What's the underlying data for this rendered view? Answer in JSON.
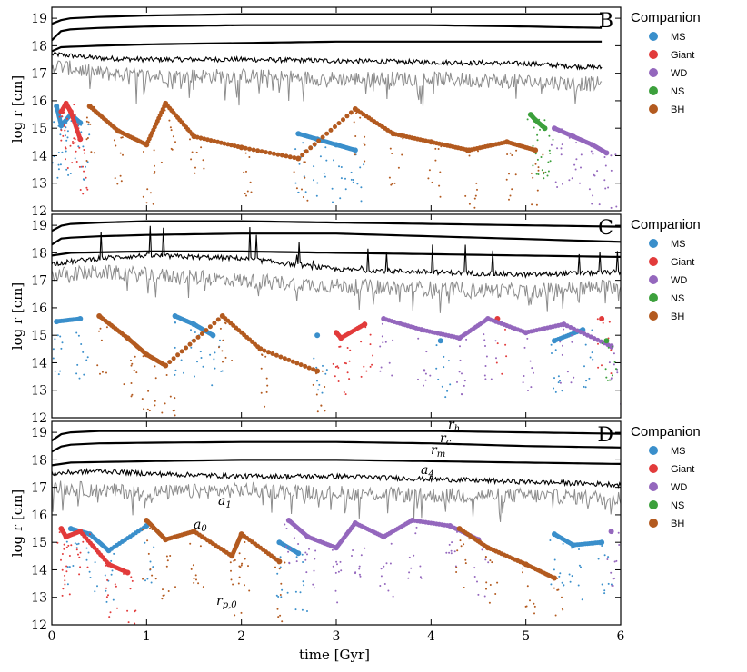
{
  "figure": {
    "xlabel": "time [Gyr]",
    "ylabel": "log r [cm]",
    "xlim": [
      0,
      6
    ],
    "ylim": [
      12,
      19.4
    ],
    "xticks": [
      "0",
      "1",
      "2",
      "3",
      "4",
      "5",
      "6"
    ],
    "yticks": [
      "12",
      "13",
      "14",
      "15",
      "16",
      "17",
      "18",
      "19"
    ]
  },
  "legend": {
    "title": "Companion",
    "entries": [
      {
        "label": "MS",
        "color": "#3a8fcb"
      },
      {
        "label": "Giant",
        "color": "#e23b3b"
      },
      {
        "label": "WD",
        "color": "#9467bd"
      },
      {
        "label": "NS",
        "color": "#3ca03c"
      },
      {
        "label": "BH",
        "color": "#b35a1f"
      }
    ]
  },
  "chart_data": [
    {
      "type": "line",
      "panel": "B",
      "series": [
        {
          "name": "r_h",
          "color": "#000000",
          "x": [
            0,
            0.05,
            0.2,
            0.5,
            1,
            2,
            3,
            4,
            5,
            5.8
          ],
          "y": [
            18.8,
            18.9,
            19.0,
            19.05,
            19.1,
            19.15,
            19.15,
            19.15,
            19.15,
            19.15
          ]
        },
        {
          "name": "r_c",
          "color": "#000000",
          "x": [
            0,
            0.05,
            0.2,
            0.5,
            1,
            2,
            3,
            4,
            5,
            5.8
          ],
          "y": [
            18.2,
            18.5,
            18.6,
            18.65,
            18.7,
            18.75,
            18.75,
            18.75,
            18.7,
            18.65
          ]
        },
        {
          "name": "r_m",
          "color": "#000000",
          "x": [
            0,
            0.1,
            0.5,
            1,
            2,
            3,
            4,
            5,
            5.8
          ],
          "y": [
            17.8,
            17.95,
            18.0,
            18.05,
            18.1,
            18.15,
            18.15,
            18.15,
            18.15
          ]
        },
        {
          "name": "a_4",
          "color": "#000000",
          "x": [
            0,
            0.5,
            1,
            2,
            3,
            4,
            5,
            5.8
          ],
          "y": [
            17.7,
            17.55,
            17.5,
            17.5,
            17.45,
            17.4,
            17.35,
            17.2
          ]
        },
        {
          "name": "a_1",
          "color": "#8c8c8c",
          "x": [
            0,
            0.5,
            1,
            2,
            3,
            4,
            5,
            5.8
          ],
          "y": [
            17.3,
            17.0,
            16.9,
            16.9,
            16.8,
            16.8,
            16.7,
            16.6
          ]
        },
        {
          "name": "MS",
          "color": "#3a8fcb",
          "x": [
            0.05,
            0.1,
            0.2,
            0.3,
            2.6,
            2.8,
            3.0,
            3.2
          ],
          "y": [
            15.8,
            15.1,
            15.5,
            15.2,
            14.8,
            14.6,
            14.4,
            14.2
          ]
        },
        {
          "name": "Giant",
          "color": "#e23b3b",
          "x": [
            0.1,
            0.15,
            0.2,
            0.3
          ],
          "y": [
            15.6,
            15.9,
            15.6,
            14.6
          ]
        },
        {
          "name": "WD",
          "color": "#9467bd",
          "x": [
            5.3,
            5.5,
            5.7,
            5.85
          ],
          "y": [
            15.0,
            14.7,
            14.4,
            14.1
          ]
        },
        {
          "name": "NS",
          "color": "#3ca03c",
          "x": [
            5.05,
            5.1,
            5.2
          ],
          "y": [
            15.5,
            15.3,
            15.0
          ]
        },
        {
          "name": "BH",
          "color": "#b35a1f",
          "x": [
            0.4,
            0.7,
            1.0,
            1.2,
            1.5,
            2.0,
            2.6,
            3.2,
            3.6,
            4.0,
            4.4,
            4.8,
            5.1
          ],
          "y": [
            15.8,
            14.9,
            14.4,
            15.9,
            14.7,
            14.3,
            13.9,
            15.7,
            14.8,
            14.5,
            14.2,
            14.5,
            14.2
          ]
        }
      ]
    },
    {
      "type": "line",
      "panel": "C",
      "series": [
        {
          "name": "r_h",
          "color": "#000000",
          "x": [
            0,
            0.05,
            0.2,
            0.5,
            1,
            2,
            3,
            4,
            5,
            6
          ],
          "y": [
            18.8,
            18.95,
            19.05,
            19.1,
            19.15,
            19.15,
            19.1,
            19.05,
            19.0,
            18.95
          ]
        },
        {
          "name": "r_c",
          "color": "#000000",
          "x": [
            0,
            0.05,
            0.2,
            0.5,
            1,
            2,
            3,
            4,
            5,
            6
          ],
          "y": [
            18.3,
            18.5,
            18.55,
            18.6,
            18.65,
            18.7,
            18.7,
            18.6,
            18.5,
            18.4
          ]
        },
        {
          "name": "r_m",
          "color": "#000000",
          "x": [
            0,
            0.2,
            1,
            2,
            3,
            4,
            5,
            6
          ],
          "y": [
            17.9,
            18.0,
            18.05,
            18.05,
            18.0,
            17.95,
            17.9,
            17.85
          ]
        },
        {
          "name": "a_4",
          "color": "#000000",
          "x": [
            0,
            0.5,
            1,
            2,
            3,
            4,
            5,
            6
          ],
          "y": [
            17.6,
            17.8,
            17.9,
            17.8,
            17.4,
            17.3,
            17.2,
            17.3
          ]
        },
        {
          "name": "a_1",
          "color": "#8c8c8c",
          "x": [
            0,
            0.5,
            1,
            2,
            3,
            4,
            5,
            6
          ],
          "y": [
            17.2,
            17.3,
            17.2,
            17.0,
            16.8,
            16.7,
            16.6,
            16.8
          ]
        },
        {
          "name": "MS",
          "color": "#3a8fcb",
          "x": [
            0.05,
            0.3,
            1.3,
            1.5,
            1.7,
            2.8,
            4.1,
            5.3,
            5.6
          ],
          "y": [
            15.5,
            15.6,
            15.7,
            15.4,
            15.0,
            15.0,
            14.8,
            14.8,
            15.2
          ]
        },
        {
          "name": "Giant",
          "color": "#e23b3b",
          "x": [
            3.0,
            3.05,
            3.3,
            4.7,
            5.8
          ],
          "y": [
            15.1,
            14.9,
            15.4,
            15.6,
            15.6
          ]
        },
        {
          "name": "WD",
          "color": "#9467bd",
          "x": [
            3.5,
            3.9,
            4.3,
            4.6,
            5.0,
            5.4,
            5.9
          ],
          "y": [
            15.6,
            15.2,
            14.9,
            15.6,
            15.1,
            15.4,
            14.6
          ]
        },
        {
          "name": "NS",
          "color": "#3ca03c",
          "x": [
            5.85
          ],
          "y": [
            14.8
          ]
        },
        {
          "name": "BH",
          "color": "#b35a1f",
          "x": [
            0.5,
            0.8,
            1.0,
            1.2,
            1.8,
            2.2,
            2.8
          ],
          "y": [
            15.7,
            14.9,
            14.3,
            13.9,
            15.7,
            14.5,
            13.7
          ]
        }
      ]
    },
    {
      "type": "line",
      "panel": "D",
      "series": [
        {
          "name": "r_h",
          "color": "#000000",
          "x": [
            0,
            0.05,
            0.2,
            0.5,
            1,
            2,
            3,
            4,
            5,
            6
          ],
          "y": [
            18.7,
            18.9,
            19.0,
            19.05,
            19.05,
            19.05,
            19.05,
            19.05,
            19.0,
            18.95
          ]
        },
        {
          "name": "r_c",
          "color": "#000000",
          "x": [
            0,
            0.05,
            0.2,
            0.5,
            1,
            2,
            3,
            4,
            5,
            6
          ],
          "y": [
            18.3,
            18.45,
            18.55,
            18.6,
            18.62,
            18.65,
            18.65,
            18.6,
            18.5,
            18.45
          ]
        },
        {
          "name": "r_m",
          "color": "#000000",
          "x": [
            0,
            0.2,
            1,
            2,
            3,
            4,
            5,
            6
          ],
          "y": [
            17.8,
            17.9,
            17.95,
            18.0,
            18.0,
            17.95,
            17.9,
            17.85
          ]
        },
        {
          "name": "a_4",
          "color": "#000000",
          "x": [
            0,
            0.5,
            1,
            2,
            3,
            4,
            5,
            6
          ],
          "y": [
            17.5,
            17.6,
            17.5,
            17.4,
            17.4,
            17.3,
            17.2,
            17.1
          ]
        },
        {
          "name": "a_1",
          "color": "#8c8c8c",
          "x": [
            0,
            0.5,
            1,
            2,
            3,
            4,
            5,
            6
          ],
          "y": [
            17.0,
            16.9,
            16.8,
            16.9,
            16.8,
            16.7,
            16.7,
            16.6
          ]
        },
        {
          "name": "MS",
          "color": "#3a8fcb",
          "x": [
            0.2,
            0.4,
            0.6,
            1.0,
            2.4,
            2.6,
            5.3,
            5.5,
            5.8
          ],
          "y": [
            15.5,
            15.3,
            14.7,
            15.6,
            15.0,
            14.6,
            15.3,
            14.9,
            15.0
          ]
        },
        {
          "name": "Giant",
          "color": "#e23b3b",
          "x": [
            0.1,
            0.15,
            0.3,
            0.6,
            0.8
          ],
          "y": [
            15.5,
            15.2,
            15.4,
            14.2,
            13.9
          ]
        },
        {
          "name": "WD",
          "color": "#9467bd",
          "x": [
            2.5,
            2.7,
            3.0,
            3.2,
            3.5,
            3.8,
            4.2,
            4.5,
            5.9
          ],
          "y": [
            15.8,
            15.2,
            14.8,
            15.7,
            15.2,
            15.8,
            15.6,
            15.1,
            15.4
          ]
        },
        {
          "name": "NS",
          "color": "#3ca03c",
          "x": [],
          "y": []
        },
        {
          "name": "BH",
          "color": "#b35a1f",
          "x": [
            1.0,
            1.2,
            1.5,
            1.9,
            2.0,
            2.4,
            4.3,
            4.6,
            5.0,
            5.3
          ],
          "y": [
            15.8,
            15.1,
            15.4,
            14.5,
            15.3,
            14.3,
            15.5,
            14.8,
            14.2,
            13.7
          ]
        }
      ]
    }
  ],
  "panels": [
    {
      "letter": "B"
    },
    {
      "letter": "C"
    },
    {
      "letter": "D"
    }
  ],
  "annotations": {
    "rh": "r",
    "rh_sub": "h",
    "rc": "r",
    "rc_sub": "c",
    "rm": "r",
    "rm_sub": "m",
    "a4": "a",
    "a4_sub": "4",
    "a1": "a",
    "a1_sub": "1",
    "a0": "a",
    "a0_sub": "0",
    "rp0": "r",
    "rp0_sub": "p,0"
  }
}
